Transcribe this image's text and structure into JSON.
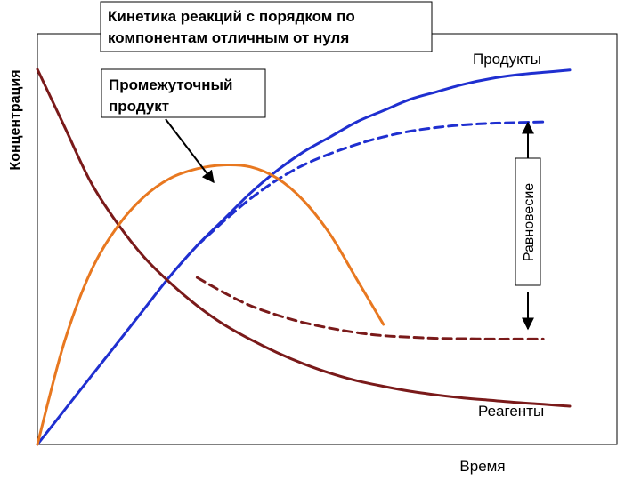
{
  "chart_data": {
    "type": "line",
    "title": "Кинетика реакций  с порядком по компонентам отличным от нуля",
    "title_lines": [
      "Кинетика реакций  с порядком по",
      "компонентам отличным от нуля"
    ],
    "xlabel": "Время",
    "ylabel": "Концентрация",
    "xlim": [
      0,
      10
    ],
    "ylim": [
      0,
      10
    ],
    "grid": false,
    "series": [
      {
        "name": "Продукты",
        "color": "#1f2fd0",
        "style": "solid",
        "x": [
          0,
          0.5,
          1,
          1.5,
          2,
          2.5,
          3,
          3.5,
          4,
          4.5,
          5,
          5.5,
          6,
          6.5,
          7,
          7.5,
          8,
          8.5,
          9,
          9.5,
          10
        ],
        "y": [
          0,
          0.9,
          1.8,
          2.7,
          3.6,
          4.5,
          5.3,
          6.0,
          6.7,
          7.3,
          7.8,
          8.2,
          8.6,
          8.9,
          9.2,
          9.4,
          9.6,
          9.75,
          9.85,
          9.92,
          9.98
        ]
      },
      {
        "name": "Продукты (равновесие)",
        "color": "#1f2fd0",
        "style": "dashed",
        "x": [
          3,
          3.5,
          4,
          4.5,
          5,
          5.5,
          6,
          6.5,
          7,
          7.5,
          8,
          8.5,
          9,
          9.5
        ],
        "y": [
          5.3,
          5.95,
          6.55,
          7.05,
          7.45,
          7.75,
          8.0,
          8.2,
          8.35,
          8.45,
          8.52,
          8.56,
          8.58,
          8.6
        ]
      },
      {
        "name": "Реагенты",
        "color": "#7a1a1a",
        "style": "solid",
        "x": [
          0,
          0.5,
          1,
          1.5,
          2,
          2.5,
          3,
          3.5,
          4,
          4.5,
          5,
          5.5,
          6,
          6.5,
          7,
          7.5,
          8,
          8.5,
          9,
          9.5,
          10
        ],
        "y": [
          10,
          8.5,
          7.0,
          5.9,
          5.0,
          4.3,
          3.7,
          3.2,
          2.8,
          2.45,
          2.15,
          1.9,
          1.7,
          1.55,
          1.42,
          1.32,
          1.24,
          1.18,
          1.12,
          1.07,
          1.02
        ]
      },
      {
        "name": "Реагенты (равновесие)",
        "color": "#7a1a1a",
        "style": "dashed",
        "x": [
          3,
          3.5,
          4,
          4.5,
          5,
          5.5,
          6,
          6.5,
          7,
          7.5,
          8,
          8.5,
          9,
          9.5
        ],
        "y": [
          4.45,
          4.05,
          3.7,
          3.45,
          3.25,
          3.1,
          2.98,
          2.9,
          2.86,
          2.83,
          2.82,
          2.81,
          2.81,
          2.81
        ]
      },
      {
        "name": "Промежуточный продукт",
        "color": "#e87820",
        "style": "solid",
        "x": [
          0,
          0.5,
          1,
          1.5,
          2,
          2.5,
          3,
          3.5,
          4,
          4.5,
          5,
          5.5,
          6,
          6.5
        ],
        "y": [
          0,
          2.7,
          4.6,
          5.8,
          6.6,
          7.1,
          7.35,
          7.45,
          7.4,
          7.1,
          6.5,
          5.6,
          4.4,
          3.2
        ]
      }
    ],
    "annotations": {
      "intermediate": [
        "Промежуточный",
        "продукт"
      ],
      "products": "Продукты",
      "reagents": "Реагенты",
      "equilibrium": "Равновесие"
    }
  }
}
